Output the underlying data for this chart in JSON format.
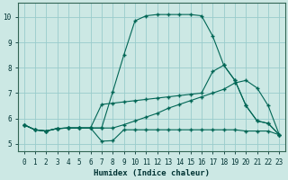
{
  "xlabel": "Humidex (Indice chaleur)",
  "bg_color": "#cce8e4",
  "grid_color": "#99cccc",
  "line_color": "#006655",
  "xlim": [
    -0.5,
    23.5
  ],
  "ylim": [
    4.7,
    10.55
  ],
  "xticks": [
    0,
    1,
    2,
    3,
    4,
    5,
    6,
    7,
    8,
    9,
    10,
    11,
    12,
    13,
    14,
    15,
    16,
    17,
    18,
    19,
    20,
    21,
    22,
    23
  ],
  "yticks": [
    5,
    6,
    7,
    8,
    9,
    10
  ],
  "line1_x": [
    0,
    1,
    2,
    3,
    4,
    5,
    6,
    7,
    8,
    9,
    10,
    11,
    12,
    13,
    14,
    15,
    16,
    17,
    18,
    19,
    20,
    21,
    22,
    23
  ],
  "line1_y": [
    5.75,
    5.55,
    5.5,
    5.6,
    5.62,
    5.62,
    5.62,
    5.62,
    7.05,
    8.5,
    9.85,
    10.05,
    10.1,
    10.1,
    10.1,
    10.1,
    10.05,
    9.25,
    8.1,
    7.5,
    6.5,
    5.9,
    5.8,
    5.35
  ],
  "line2_x": [
    0,
    1,
    2,
    3,
    4,
    5,
    6,
    7,
    8,
    9,
    10,
    11,
    12,
    13,
    14,
    15,
    16,
    17,
    18,
    19,
    20,
    21,
    22,
    23
  ],
  "line2_y": [
    5.75,
    5.55,
    5.5,
    5.6,
    5.62,
    5.62,
    5.62,
    6.55,
    6.6,
    6.65,
    6.7,
    6.75,
    6.8,
    6.85,
    6.9,
    6.95,
    7.0,
    7.85,
    8.1,
    7.5,
    6.5,
    5.9,
    5.8,
    5.35
  ],
  "line3_x": [
    0,
    1,
    2,
    3,
    4,
    5,
    6,
    7,
    8,
    9,
    10,
    11,
    12,
    13,
    14,
    15,
    16,
    17,
    18,
    19,
    20,
    21,
    22,
    23
  ],
  "line3_y": [
    5.75,
    5.55,
    5.5,
    5.6,
    5.62,
    5.62,
    5.62,
    5.62,
    5.62,
    5.75,
    5.9,
    6.05,
    6.2,
    6.4,
    6.55,
    6.7,
    6.85,
    7.0,
    7.15,
    7.4,
    7.5,
    7.2,
    6.5,
    5.35
  ],
  "line4_x": [
    0,
    1,
    2,
    3,
    4,
    5,
    6,
    7,
    8,
    9,
    10,
    11,
    12,
    13,
    14,
    15,
    16,
    17,
    18,
    19,
    20,
    21,
    22,
    23
  ],
  "line4_y": [
    5.75,
    5.55,
    5.5,
    5.6,
    5.62,
    5.62,
    5.62,
    5.1,
    5.12,
    5.55,
    5.55,
    5.55,
    5.55,
    5.55,
    5.55,
    5.55,
    5.55,
    5.55,
    5.55,
    5.55,
    5.5,
    5.5,
    5.5,
    5.35
  ]
}
